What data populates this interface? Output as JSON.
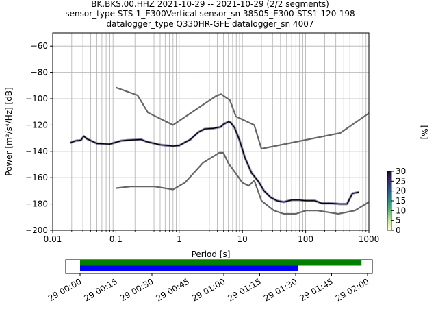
{
  "chart_data": [
    {
      "type": "line",
      "title_lines": [
        "BK.BKS.00.HHZ   2021-10-29 -- 2021-10-29  (2/2 segments)",
        "sensor_type STS-1_E300Vertical sensor_sn 38505_E300-STS1-120-198",
        "datalogger_type Q330HR-GFE datalogger_sn 4007"
      ],
      "xlabel": "Period [s]",
      "ylabel": "Power [m²/s⁴/Hz] [dB]",
      "x_scale": "log",
      "xlim": [
        0.01,
        1000
      ],
      "ylim": [
        -200,
        -50
      ],
      "x_ticks": [
        {
          "value": 0.01,
          "label": "0.01"
        },
        {
          "value": 0.1,
          "label": "0.1"
        },
        {
          "value": 1,
          "label": "1"
        },
        {
          "value": 10,
          "label": "10"
        },
        {
          "value": 100,
          "label": "100"
        },
        {
          "value": 1000,
          "label": "1000"
        }
      ],
      "y_ticks": [
        {
          "value": -60,
          "label": "−60"
        },
        {
          "value": -80,
          "label": "−80"
        },
        {
          "value": -100,
          "label": "−100"
        },
        {
          "value": -120,
          "label": "−120"
        },
        {
          "value": -140,
          "label": "−140"
        },
        {
          "value": -160,
          "label": "−160"
        },
        {
          "value": -180,
          "label": "−180"
        },
        {
          "value": -200,
          "label": "−200"
        }
      ],
      "grid": true,
      "series": [
        {
          "role": "noise-model-high",
          "color": "#666666",
          "x": [
            0.1,
            0.22,
            0.32,
            0.8,
            3.8,
            4.6,
            6.3,
            7.9,
            15.4,
            20,
            354.8,
            1000
          ],
          "y": [
            -91.5,
            -97.4,
            -110.5,
            -120.0,
            -98.0,
            -96.5,
            -101.0,
            -113.5,
            -120.0,
            -138.0,
            -126.0,
            -111.0
          ]
        },
        {
          "role": "noise-model-low",
          "color": "#666666",
          "x": [
            0.1,
            0.17,
            0.4,
            0.8,
            1.24,
            2.4,
            4.3,
            5.0,
            6.0,
            10.0,
            12.6,
            15.4,
            20.0,
            21.9,
            31.6,
            45.0,
            70.0,
            101.0,
            154.0,
            328.0,
            600.0,
            1000.0
          ],
          "y": [
            -168.0,
            -166.7,
            -166.7,
            -169.0,
            -163.7,
            -148.6,
            -141.1,
            -141.1,
            -149.0,
            -163.8,
            -166.2,
            -162.1,
            -177.5,
            -179.0,
            -185.0,
            -187.5,
            -187.5,
            -185.0,
            -185.0,
            -187.5,
            -185.0,
            -178.5
          ]
        },
        {
          "role": "psd-mode",
          "color": "#000000",
          "x": [
            0.019,
            0.023,
            0.028,
            0.031,
            0.035,
            0.05,
            0.08,
            0.12,
            0.15,
            0.25,
            0.3,
            0.5,
            0.8,
            1.0,
            1.5,
            2.0,
            2.5,
            3.5,
            4.5,
            5.0,
            6.0,
            6.5,
            7.5,
            9.0,
            11.0,
            14.0,
            18.0,
            22.0,
            28.0,
            35.0,
            45.0,
            60.0,
            80.0,
            100.0,
            140.0,
            180.0,
            250.0,
            350.0,
            450.0,
            550.0,
            700.0
          ],
          "y": [
            -133.5,
            -132.0,
            -131.5,
            -128.5,
            -130.5,
            -134.0,
            -134.5,
            -132.0,
            -131.5,
            -131.0,
            -132.5,
            -135.0,
            -136.0,
            -135.5,
            -131.0,
            -125.5,
            -123.0,
            -122.5,
            -121.5,
            -119.5,
            -117.5,
            -118.0,
            -122.0,
            -131.5,
            -145.0,
            -156.5,
            -163.0,
            -170.0,
            -175.0,
            -177.5,
            -178.5,
            -177.0,
            -177.0,
            -177.5,
            -177.5,
            -179.5,
            -179.5,
            -180.0,
            -180.0,
            -172.0,
            -171.0
          ]
        }
      ],
      "colorbar": {
        "label": "[%]",
        "range": [
          0,
          30
        ],
        "ticks": [
          "0",
          "5",
          "10",
          "15",
          "20",
          "25",
          "30"
        ],
        "colormap": [
          "#ffffe0",
          "#c6e6a0",
          "#5fb87a",
          "#2b8f8a",
          "#2a5b8c",
          "#3a2d6e",
          "#1c0a2e"
        ]
      }
    },
    {
      "type": "timeline",
      "x_ticks": [
        "29 00:00",
        "29 00:15",
        "29 00:30",
        "29 00:45",
        "29 01:00",
        "29 01:15",
        "29 01:30",
        "29 01:45",
        "29 02:00"
      ],
      "x_tick_minutes": [
        0,
        15,
        30,
        45,
        60,
        75,
        90,
        105,
        120
      ],
      "xlim_minutes": [
        -6,
        122
      ],
      "bars": [
        {
          "role": "data-segments",
          "color": "#008000",
          "start_minute": 0,
          "end_minute": 117.5
        },
        {
          "role": "psd-segments",
          "color": "#0000ff",
          "start_minute": 0,
          "end_minute": 91.0
        }
      ]
    }
  ]
}
